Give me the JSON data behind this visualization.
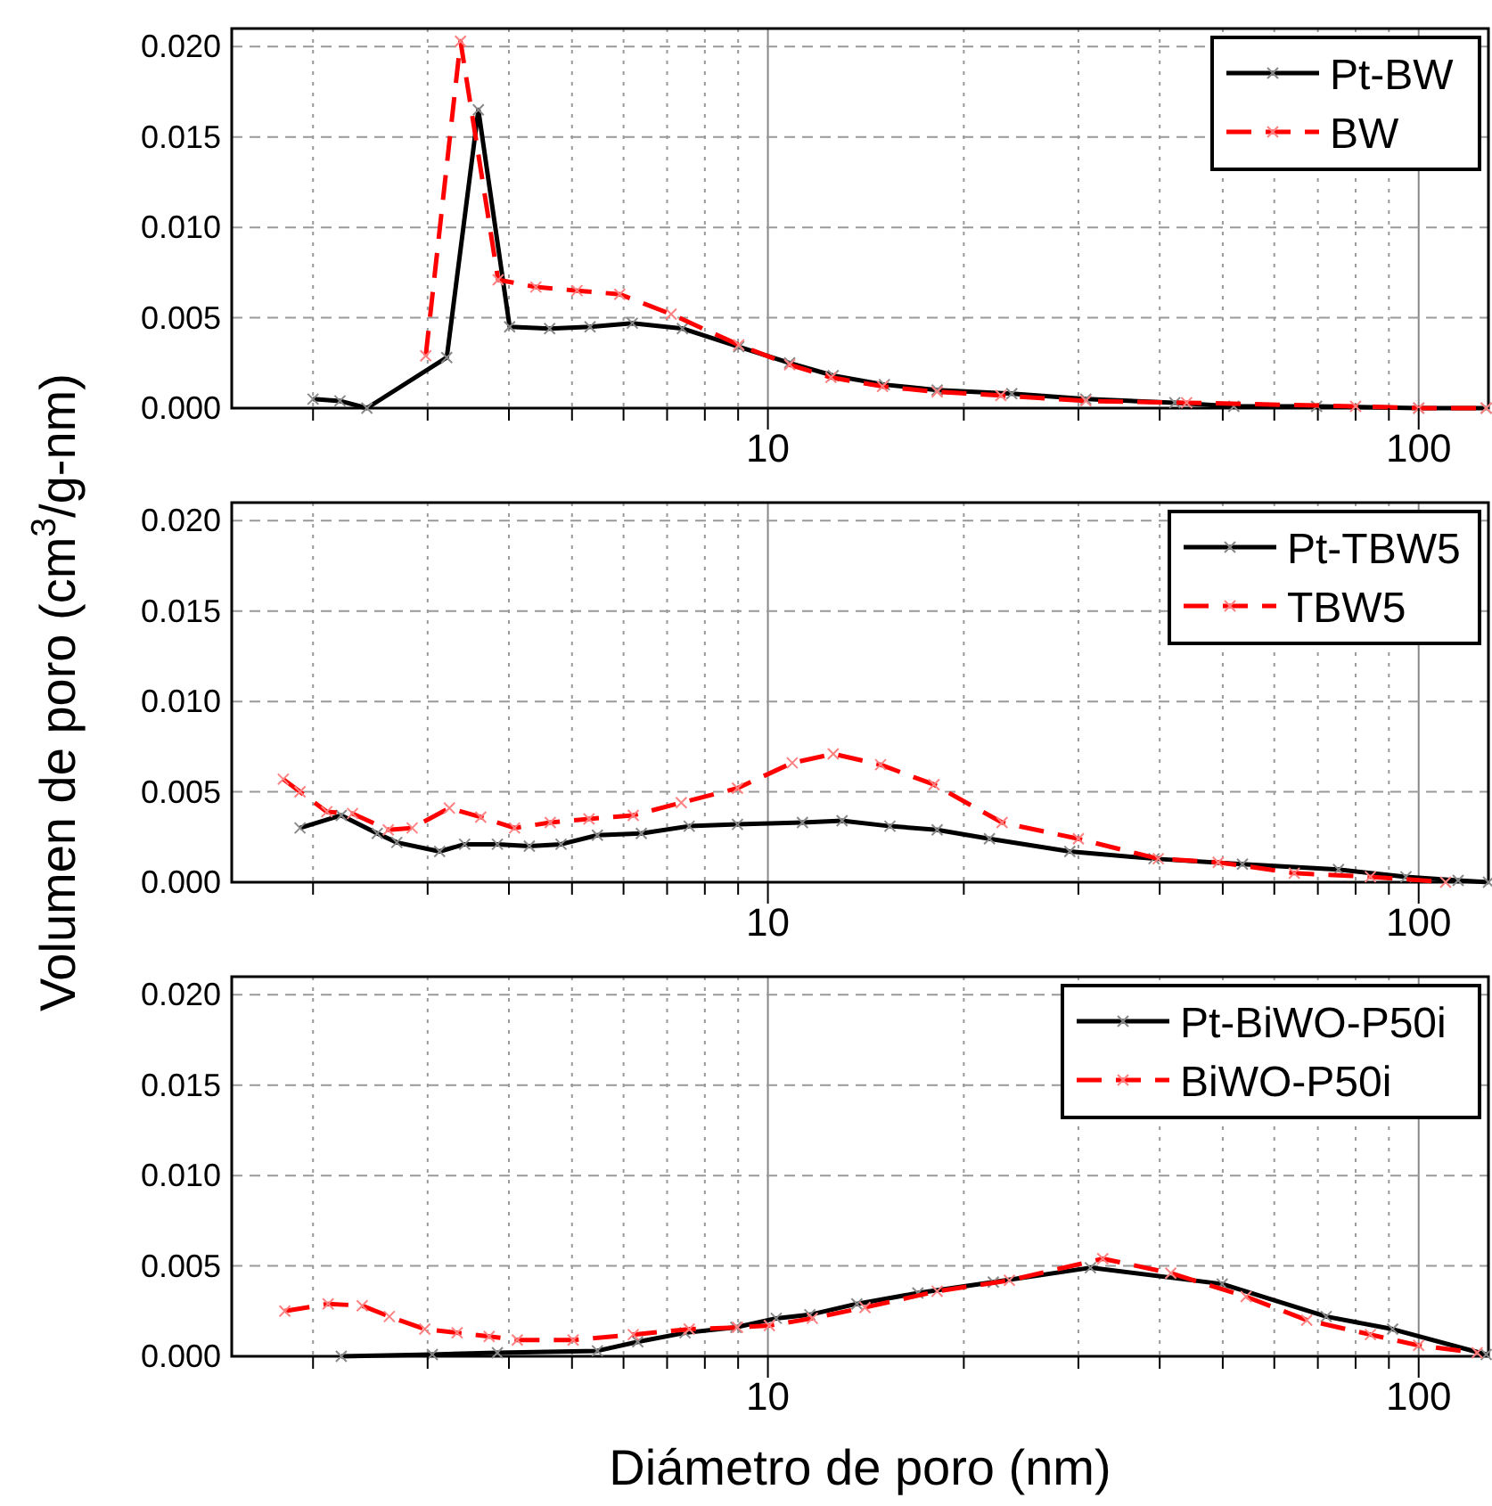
{
  "chart_data": [
    {
      "type": "line",
      "log": "x",
      "xlim": [
        1.5,
        128
      ],
      "ylim": [
        0,
        0.021
      ],
      "xticks": [
        {
          "value": 2,
          "label": null
        },
        {
          "value": 3,
          "label": null
        },
        {
          "value": 4,
          "label": null
        },
        {
          "value": 5,
          "label": null
        },
        {
          "value": 6,
          "label": null
        },
        {
          "value": 7,
          "label": null
        },
        {
          "value": 8,
          "label": null
        },
        {
          "value": 9,
          "label": null
        },
        {
          "value": 10,
          "label": "10"
        },
        {
          "value": 20,
          "label": null
        },
        {
          "value": 30,
          "label": null
        },
        {
          "value": 40,
          "label": null
        },
        {
          "value": 50,
          "label": null
        },
        {
          "value": 60,
          "label": null
        },
        {
          "value": 70,
          "label": null
        },
        {
          "value": 80,
          "label": null
        },
        {
          "value": 90,
          "label": null
        },
        {
          "value": 100,
          "label": "100"
        }
      ],
      "yticks": [
        {
          "value": 0,
          "label": "0.000"
        },
        {
          "value": 0.005,
          "label": "0.005"
        },
        {
          "value": 0.01,
          "label": "0.010"
        },
        {
          "value": 0.015,
          "label": "0.015"
        },
        {
          "value": 0.02,
          "label": "0.020"
        }
      ],
      "grid": true,
      "legend": "top right",
      "marker": "cross",
      "series": [
        {
          "name": "Pt-BW",
          "color": "#000000",
          "line_style": "solid",
          "x": [
            2.0,
            2.2,
            2.42,
            3.21,
            3.59,
            4.01,
            4.62,
            5.33,
            6.19,
            7.39,
            9.02,
            10.8,
            12.6,
            15.1,
            18.2,
            23.7,
            30.8,
            42.2,
            52,
            69.7,
            100,
            127
          ],
          "values": [
            0.0005,
            0.0004,
            0,
            0.0028,
            0.0165,
            0.0045,
            0.0044,
            0.0045,
            0.0047,
            0.0044,
            0.0034,
            0.0025,
            0.0018,
            0.0013,
            0.001,
            0.0008,
            0.0005,
            0.0003,
            0.0001,
            0.0001,
            0,
            0
          ]
        },
        {
          "name": "BW",
          "color": "#ff0000",
          "line_style": "dashed",
          "x": [
            2.98,
            3.37,
            3.85,
            4.4,
            5.09,
            5.92,
            7.1,
            9.02,
            10.8,
            12.5,
            15.0,
            18.2,
            22.8,
            30.8,
            44,
            80,
            100,
            127
          ],
          "values": [
            0.0029,
            0.0203,
            0.0071,
            0.0067,
            0.0065,
            0.0063,
            0.0052,
            0.0035,
            0.0024,
            0.0017,
            0.0012,
            0.0009,
            0.0007,
            0.0004,
            0.0003,
            0.0001,
            0,
            0
          ]
        }
      ]
    },
    {
      "type": "line",
      "log": "x",
      "ylabel": "Volumen de poro (cm$^{3}$/g-nm)",
      "xlim": [
        1.5,
        128
      ],
      "ylim": [
        0,
        0.021
      ],
      "xticks": [
        {
          "value": 2,
          "label": null
        },
        {
          "value": 3,
          "label": null
        },
        {
          "value": 4,
          "label": null
        },
        {
          "value": 5,
          "label": null
        },
        {
          "value": 6,
          "label": null
        },
        {
          "value": 7,
          "label": null
        },
        {
          "value": 8,
          "label": null
        },
        {
          "value": 9,
          "label": null
        },
        {
          "value": 10,
          "label": "10"
        },
        {
          "value": 20,
          "label": null
        },
        {
          "value": 30,
          "label": null
        },
        {
          "value": 40,
          "label": null
        },
        {
          "value": 50,
          "label": null
        },
        {
          "value": 60,
          "label": null
        },
        {
          "value": 70,
          "label": null
        },
        {
          "value": 80,
          "label": null
        },
        {
          "value": 90,
          "label": null
        },
        {
          "value": 100,
          "label": "100"
        }
      ],
      "yticks": [
        {
          "value": 0,
          "label": "0.000"
        },
        {
          "value": 0.005,
          "label": "0.005"
        },
        {
          "value": 0.01,
          "label": "0.010"
        },
        {
          "value": 0.015,
          "label": "0.015"
        },
        {
          "value": 0.02,
          "label": "0.020"
        }
      ],
      "grid": true,
      "legend": "top right",
      "marker": "cross",
      "series": [
        {
          "name": "Pt-TBW5",
          "color": "#000000",
          "line_style": "solid",
          "x": [
            1.91,
            2.21,
            2.51,
            2.69,
            3.13,
            3.42,
            3.84,
            4.3,
            4.81,
            5.47,
            6.39,
            7.57,
            8.98,
            11.3,
            13.0,
            15.4,
            18.2,
            21.9,
            29.1,
            39.2,
            53.6,
            75.3,
            95.6,
            115,
            128
          ],
          "values": [
            0.003,
            0.0037,
            0.0027,
            0.0022,
            0.0017,
            0.0021,
            0.0021,
            0.002,
            0.0021,
            0.0026,
            0.0027,
            0.0031,
            0.0032,
            0.0033,
            0.0034,
            0.0031,
            0.0029,
            0.0024,
            0.0017,
            0.0013,
            0.001,
            0.0007,
            0.0003,
            0.0001,
            0
          ]
        },
        {
          "name": "TBW5",
          "color": "#ff0000",
          "line_style": "dashed",
          "x": [
            1.8,
            1.91,
            2.1,
            2.3,
            2.61,
            2.84,
            3.24,
            3.62,
            4.08,
            4.63,
            5.31,
            6.21,
            7.36,
            8.98,
            10.9,
            12.6,
            14.9,
            18.0,
            22.9,
            30.0,
            39.8,
            49.2,
            64.4,
            84.3,
            110
          ],
          "values": [
            0.0057,
            0.005,
            0.0039,
            0.0038,
            0.0029,
            0.003,
            0.0041,
            0.0036,
            0.003,
            0.0033,
            0.0035,
            0.0037,
            0.0044,
            0.0052,
            0.0066,
            0.0071,
            0.0065,
            0.0054,
            0.0033,
            0.0024,
            0.0013,
            0.0011,
            0.0005,
            0.0003,
            0
          ]
        }
      ]
    },
    {
      "type": "line",
      "log": "x",
      "xlabel": "Diámetro de poro (nm)",
      "xlim": [
        1.5,
        128
      ],
      "ylim": [
        0,
        0.021
      ],
      "xticks": [
        {
          "value": 2,
          "label": null
        },
        {
          "value": 3,
          "label": null
        },
        {
          "value": 4,
          "label": null
        },
        {
          "value": 5,
          "label": null
        },
        {
          "value": 6,
          "label": null
        },
        {
          "value": 7,
          "label": null
        },
        {
          "value": 8,
          "label": null
        },
        {
          "value": 9,
          "label": null
        },
        {
          "value": 10,
          "label": "10"
        },
        {
          "value": 20,
          "label": null
        },
        {
          "value": 30,
          "label": null
        },
        {
          "value": 40,
          "label": null
        },
        {
          "value": 50,
          "label": null
        },
        {
          "value": 60,
          "label": null
        },
        {
          "value": 70,
          "label": null
        },
        {
          "value": 80,
          "label": null
        },
        {
          "value": 90,
          "label": null
        },
        {
          "value": 100,
          "label": "100"
        }
      ],
      "yticks": [
        {
          "value": 0,
          "label": "0.000"
        },
        {
          "value": 0.005,
          "label": "0.005"
        },
        {
          "value": 0.01,
          "label": "0.010"
        },
        {
          "value": 0.015,
          "label": "0.015"
        },
        {
          "value": 0.02,
          "label": "0.020"
        }
      ],
      "grid": true,
      "legend": "top right",
      "marker": "cross",
      "series": [
        {
          "name": "Pt-BiWO-P50i",
          "color": "#000000",
          "line_style": "solid",
          "x": [
            2.21,
            3.05,
            3.84,
            5.47,
            6.31,
            7.46,
            8.93,
            10.3,
            11.6,
            13.7,
            17.0,
            22.2,
            31.3,
            49.9,
            72.1,
            91.2,
            127
          ],
          "values": [
            0,
            0.0001,
            0.0002,
            0.0003,
            0.0008,
            0.0013,
            0.0016,
            0.0021,
            0.0023,
            0.0029,
            0.0035,
            0.0041,
            0.0049,
            0.004,
            0.0022,
            0.0015,
            0.0001
          ]
        },
        {
          "name": "BiWO-P50i",
          "color": "#ff0000",
          "line_style": "dashed",
          "x": [
            1.81,
            2.11,
            2.38,
            2.62,
            2.97,
            3.33,
            3.73,
            4.12,
            5.02,
            6.21,
            7.57,
            8.98,
            10.05,
            11.7,
            14.1,
            18.2,
            23.5,
            32.7,
            41.6,
            54.3,
            67.3,
            84.3,
            100,
            123
          ],
          "values": [
            0.0025,
            0.0029,
            0.0028,
            0.0022,
            0.0015,
            0.0013,
            0.0011,
            0.0009,
            0.0009,
            0.0012,
            0.0015,
            0.0016,
            0.0017,
            0.0021,
            0.0027,
            0.0036,
            0.0042,
            0.0054,
            0.0046,
            0.0033,
            0.002,
            0.0012,
            0.0006,
            0.0002
          ]
        }
      ]
    }
  ]
}
